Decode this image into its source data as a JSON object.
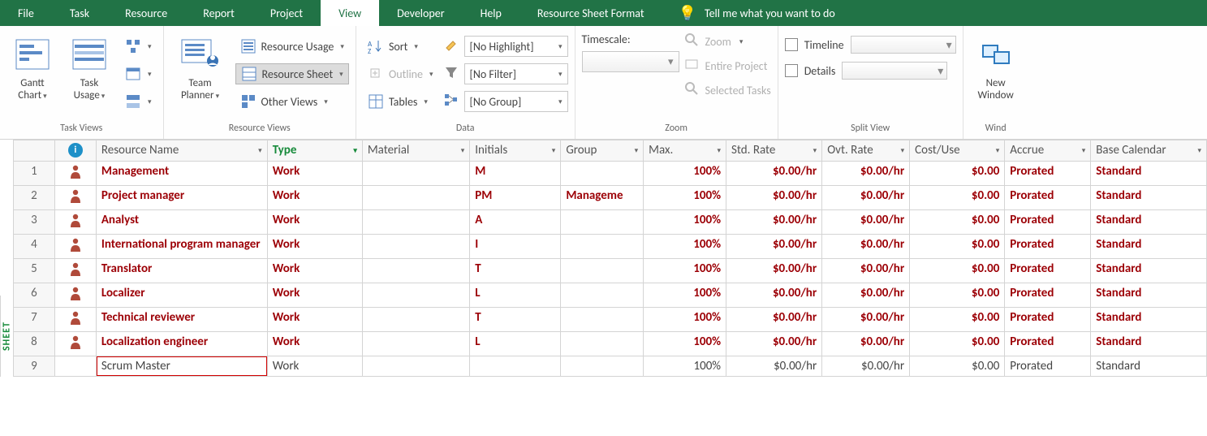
{
  "menu": {
    "tabs": [
      "File",
      "Task",
      "Resource",
      "Report",
      "Project",
      "View",
      "Developer",
      "Help",
      "Resource Sheet Format"
    ],
    "active": "View",
    "tell_me": "Tell me what you want to do"
  },
  "ribbon": {
    "task_views": {
      "label": "Task Views",
      "gantt": "Gantt\nChart",
      "task_usage": "Task\nUsage"
    },
    "resource_views": {
      "label": "Resource Views",
      "team_planner": "Team\nPlanner",
      "resource_usage": "Resource Usage",
      "resource_sheet": "Resource Sheet",
      "other_views": "Other Views"
    },
    "data": {
      "label": "Data",
      "sort": "Sort",
      "outline": "Outline",
      "tables": "Tables",
      "highlight": "[No Highlight]",
      "filter": "[No Filter]",
      "group": "[No Group]"
    },
    "zoom": {
      "label": "Zoom",
      "timescale": "Timescale:",
      "zoom": "Zoom",
      "entire": "Entire Project",
      "selected": "Selected Tasks"
    },
    "split": {
      "label": "Split View",
      "timeline": "Timeline",
      "details": "Details"
    },
    "window": {
      "label": "Wind",
      "new": "New\nWindow"
    }
  },
  "colors": {
    "brand": "#217346",
    "critical": "#9c0006",
    "highlight_border": "#d20000"
  },
  "table": {
    "headers": {
      "resource_name": "Resource Name",
      "type": "Type",
      "material": "Material",
      "initials": "Initials",
      "group": "Group",
      "max": "Max.",
      "std_rate": "Std. Rate",
      "ovt_rate": "Ovt. Rate",
      "cost_use": "Cost/Use",
      "accrue": "Accrue",
      "base_cal": "Base Calendar"
    },
    "rows": [
      {
        "n": "1",
        "icon": true,
        "name": "Management",
        "type": "Work",
        "material": "",
        "initials": "M",
        "group": "",
        "max": "100%",
        "std": "$0.00/hr",
        "ovt": "$0.00/hr",
        "cost": "$0.00",
        "accrue": "Prorated",
        "base": "Standard",
        "critical": true
      },
      {
        "n": "2",
        "icon": true,
        "name": "Project manager",
        "type": "Work",
        "material": "",
        "initials": "PM",
        "group": "Manageme",
        "max": "100%",
        "std": "$0.00/hr",
        "ovt": "$0.00/hr",
        "cost": "$0.00",
        "accrue": "Prorated",
        "base": "Standard",
        "critical": true
      },
      {
        "n": "3",
        "icon": true,
        "name": "Analyst",
        "type": "Work",
        "material": "",
        "initials": "A",
        "group": "",
        "max": "100%",
        "std": "$0.00/hr",
        "ovt": "$0.00/hr",
        "cost": "$0.00",
        "accrue": "Prorated",
        "base": "Standard",
        "critical": true
      },
      {
        "n": "4",
        "icon": true,
        "name": "International program manager",
        "type": "Work",
        "material": "",
        "initials": "I",
        "group": "",
        "max": "100%",
        "std": "$0.00/hr",
        "ovt": "$0.00/hr",
        "cost": "$0.00",
        "accrue": "Prorated",
        "base": "Standard",
        "critical": true
      },
      {
        "n": "5",
        "icon": true,
        "name": "Translator",
        "type": "Work",
        "material": "",
        "initials": "T",
        "group": "",
        "max": "100%",
        "std": "$0.00/hr",
        "ovt": "$0.00/hr",
        "cost": "$0.00",
        "accrue": "Prorated",
        "base": "Standard",
        "critical": true
      },
      {
        "n": "6",
        "icon": true,
        "name": "Localizer",
        "type": "Work",
        "material": "",
        "initials": "L",
        "group": "",
        "max": "100%",
        "std": "$0.00/hr",
        "ovt": "$0.00/hr",
        "cost": "$0.00",
        "accrue": "Prorated",
        "base": "Standard",
        "critical": true
      },
      {
        "n": "7",
        "icon": true,
        "name": "Technical reviewer",
        "type": "Work",
        "material": "",
        "initials": "T",
        "group": "",
        "max": "100%",
        "std": "$0.00/hr",
        "ovt": "$0.00/hr",
        "cost": "$0.00",
        "accrue": "Prorated",
        "base": "Standard",
        "critical": true
      },
      {
        "n": "8",
        "icon": true,
        "name": "Localization engineer",
        "type": "Work",
        "material": "",
        "initials": "L",
        "group": "",
        "max": "100%",
        "std": "$0.00/hr",
        "ovt": "$0.00/hr",
        "cost": "$0.00",
        "accrue": "Prorated",
        "base": "Standard",
        "critical": true
      },
      {
        "n": "9",
        "icon": false,
        "name": "Scrum Master",
        "type": "Work",
        "material": "",
        "initials": "",
        "group": "",
        "max": "100%",
        "std": "$0.00/hr",
        "ovt": "$0.00/hr",
        "cost": "$0.00",
        "accrue": "Prorated",
        "base": "Standard",
        "critical": false,
        "highlight_name": true
      }
    ]
  },
  "left_rail": "SHEET"
}
